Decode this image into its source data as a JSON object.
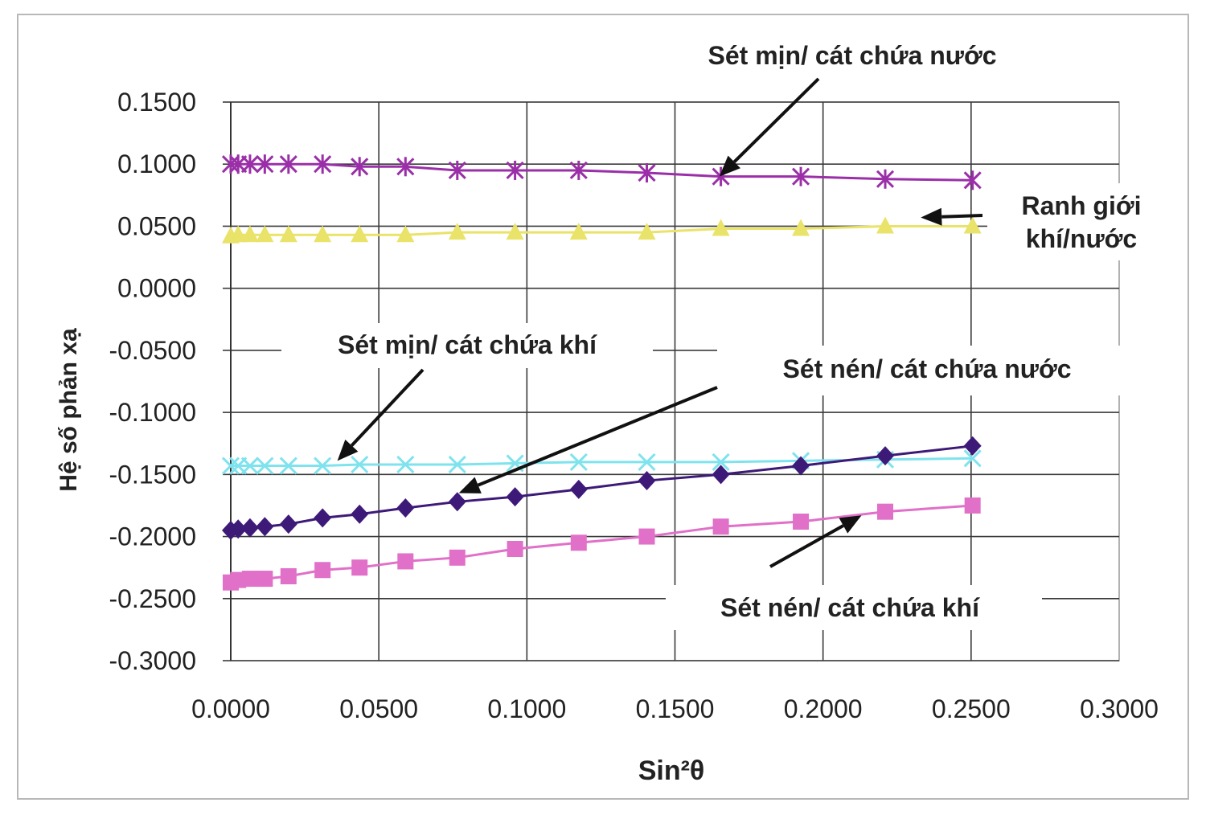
{
  "chart_data": {
    "type": "line",
    "xlabel": "Sin²θ",
    "ylabel": "Hệ số phản xạ",
    "xlim": [
      0,
      0.3
    ],
    "ylim": [
      -0.3,
      0.15
    ],
    "x_ticks": [
      "0.0000",
      "0.0500",
      "0.1000",
      "0.1500",
      "0.2000",
      "0.2500",
      "0.3000"
    ],
    "y_ticks": [
      "0.1500",
      "0.1000",
      "0.0500",
      "0.0000",
      "-0.0500",
      "-0.1000",
      "-0.1500",
      "-0.2000",
      "-0.2500",
      "-0.3000"
    ],
    "grid": true,
    "x": [
      0.0,
      0.0025,
      0.0065,
      0.0115,
      0.0195,
      0.031,
      0.0435,
      0.059,
      0.0765,
      0.096,
      0.1175,
      0.1405,
      0.1655,
      0.1925,
      0.221,
      0.2505
    ],
    "series": [
      {
        "key": "set-min-cat-nuoc",
        "color": "#9a2fa8",
        "marker": "asterisk",
        "values": [
          0.1,
          0.1,
          0.1,
          0.1,
          0.1,
          0.1,
          0.098,
          0.098,
          0.095,
          0.095,
          0.095,
          0.093,
          0.09,
          0.09,
          0.088,
          0.087
        ]
      },
      {
        "key": "ranh-gioi",
        "color": "#e9e36a",
        "marker": "triangle",
        "values": [
          0.042,
          0.043,
          0.043,
          0.043,
          0.043,
          0.043,
          0.043,
          0.043,
          0.045,
          0.045,
          0.045,
          0.045,
          0.048,
          0.048,
          0.05,
          0.05
        ]
      },
      {
        "key": "set-min-cat-khi",
        "color": "#7fe3ee",
        "marker": "x",
        "values": [
          -0.143,
          -0.143,
          -0.143,
          -0.143,
          -0.143,
          -0.143,
          -0.142,
          -0.142,
          -0.142,
          -0.141,
          -0.14,
          -0.14,
          -0.14,
          -0.139,
          -0.138,
          -0.137
        ]
      },
      {
        "key": "set-nen-cat-nuoc",
        "color": "#3e1a78",
        "marker": "diamond",
        "values": [
          -0.195,
          -0.194,
          -0.193,
          -0.192,
          -0.19,
          -0.185,
          -0.182,
          -0.177,
          -0.172,
          -0.168,
          -0.162,
          -0.155,
          -0.15,
          -0.143,
          -0.135,
          -0.127
        ]
      },
      {
        "key": "set-nen-cat-khi",
        "color": "#e070c8",
        "marker": "square",
        "values": [
          -0.237,
          -0.235,
          -0.234,
          -0.234,
          -0.232,
          -0.227,
          -0.225,
          -0.22,
          -0.217,
          -0.21,
          -0.205,
          -0.2,
          -0.192,
          -0.188,
          -0.18,
          -0.175
        ]
      }
    ],
    "annotations": [
      {
        "key": "ann-1",
        "text": "Sét mịn/ cát chứa nước",
        "arrow_to": [
          0.165,
          0.09
        ]
      },
      {
        "key": "ann-2",
        "lines": [
          "Ranh giới",
          "khí/nước"
        ],
        "arrow_to": [
          0.233,
          0.057
        ]
      },
      {
        "key": "ann-3",
        "text": "Sét mịn/ cát chứa khí",
        "arrow_to": [
          0.036,
          -0.139
        ]
      },
      {
        "key": "ann-4",
        "text": "Sét nén/ cát chứa nước",
        "arrow_to": [
          0.077,
          -0.165
        ]
      },
      {
        "key": "ann-5",
        "text": "Sét nén/ cát chứa khí",
        "arrow_to": [
          0.213,
          -0.183
        ]
      }
    ]
  }
}
